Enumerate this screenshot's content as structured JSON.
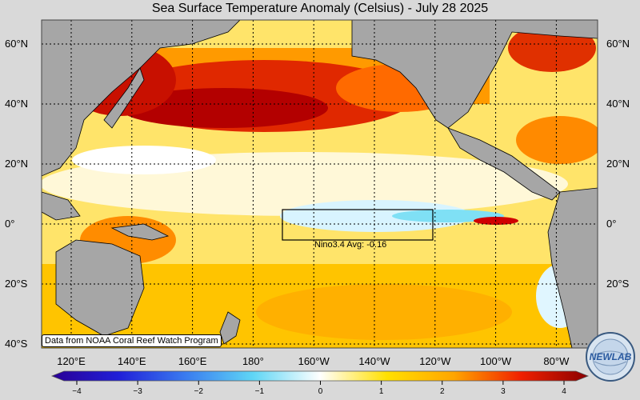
{
  "title": "Sea Surface Temperature Anomaly (Celsius) - July 28 2025",
  "latitudes": [
    {
      "label": "60°N",
      "lat": 60
    },
    {
      "label": "40°N",
      "lat": 40
    },
    {
      "label": "20°N",
      "lat": 20
    },
    {
      "label": "0°",
      "lat": 0
    },
    {
      "label": "20°S",
      "lat": -20
    },
    {
      "label": "40°S",
      "lat": -40
    }
  ],
  "longitudes": [
    "120°E",
    "140°E",
    "160°E",
    "180°",
    "160°W",
    "140°W",
    "120°W",
    "100°W",
    "80°W"
  ],
  "colorbar": {
    "ticks": [
      "−4",
      "−3",
      "−2",
      "−1",
      "0",
      "1",
      "2",
      "3",
      "4"
    ],
    "min": -4,
    "max": 4,
    "colors": [
      "#2a0096",
      "#2020d8",
      "#3a7cf0",
      "#5fd6f5",
      "#ffffff",
      "#ffe000",
      "#ffa500",
      "#f02000",
      "#8b0000"
    ]
  },
  "nino_box_label": "Nino3.4 Avg: -0.16",
  "credit": "Data from NOAA Coral Reef Watch Program",
  "logo_text": "NEW LAB",
  "colors": {
    "land": "#a6a6a6",
    "background": "#d9d9d9"
  }
}
